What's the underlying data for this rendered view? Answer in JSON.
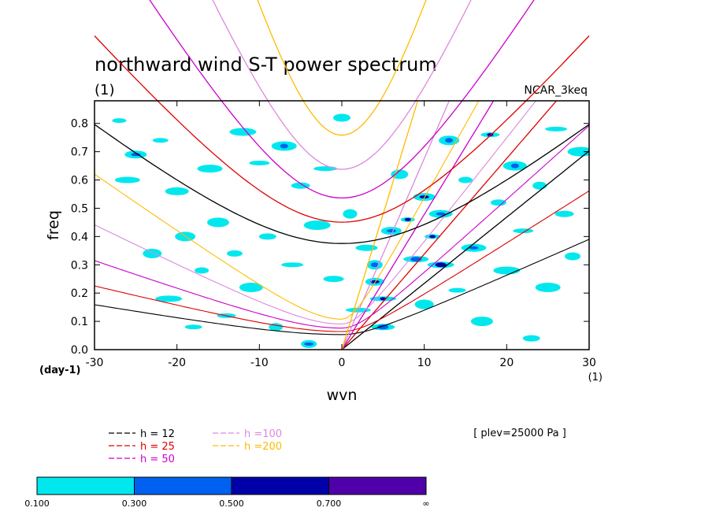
{
  "chart_data": {
    "type": "heatmap",
    "title": "northward wind S-T power spectrum",
    "subtitle_left": "(1)",
    "subtitle_right": "NCAR_3keq",
    "xlabel": "wvn",
    "ylabel": "freq",
    "x_unit": "(1)",
    "y_unit": "(day-1)",
    "xlim": [
      -30,
      30
    ],
    "ylim": [
      0,
      0.88
    ],
    "x_ticks": [
      -30,
      -20,
      -10,
      0,
      10,
      20,
      30
    ],
    "x_tick_labels": [
      "-30",
      "-20",
      "-10",
      "0",
      "10",
      "20",
      "30"
    ],
    "y_ticks": [
      0.0,
      0.1,
      0.2,
      0.3,
      0.4,
      0.5,
      0.6,
      0.7,
      0.8
    ],
    "y_tick_labels": [
      "0.0",
      "0.1",
      "0.2",
      "0.3",
      "0.4",
      "0.5",
      "0.6",
      "0.7",
      "0.8"
    ],
    "annotation": "[ plev=25000 Pa ]",
    "colorbar": {
      "levels": [
        "0.100",
        "0.300",
        "0.500",
        "0.700",
        "∞"
      ],
      "colors": [
        "#00e8ee",
        "#0060f0",
        "#0000a8",
        "#5000a8"
      ]
    },
    "dispersion_curves": [
      {
        "label": "h = 12",
        "color": "#000000",
        "h": 12
      },
      {
        "label": "h = 25",
        "color": "#dd0000",
        "h": 25
      },
      {
        "label": "h = 50",
        "color": "#cc00cc",
        "h": 50
      },
      {
        "label": "h =100",
        "color": "#dd88dd",
        "h": 100
      },
      {
        "label": "h =200",
        "color": "#ffbb00",
        "h": 200
      }
    ],
    "heat_blobs": [
      {
        "x": -27,
        "y": 0.81,
        "v": 0.15
      },
      {
        "x": -26,
        "y": 0.6,
        "v": 0.15
      },
      {
        "x": -25,
        "y": 0.69,
        "v": 0.32
      },
      {
        "x": -23,
        "y": 0.34,
        "v": 0.15
      },
      {
        "x": -22,
        "y": 0.74,
        "v": 0.15
      },
      {
        "x": -21,
        "y": 0.18,
        "v": 0.15
      },
      {
        "x": -20,
        "y": 0.56,
        "v": 0.15
      },
      {
        "x": -19,
        "y": 0.4,
        "v": 0.15
      },
      {
        "x": -18,
        "y": 0.08,
        "v": 0.15
      },
      {
        "x": -17,
        "y": 0.28,
        "v": 0.15
      },
      {
        "x": -16,
        "y": 0.64,
        "v": 0.15
      },
      {
        "x": -15,
        "y": 0.45,
        "v": 0.15
      },
      {
        "x": -14,
        "y": 0.12,
        "v": 0.15
      },
      {
        "x": -13,
        "y": 0.34,
        "v": 0.15
      },
      {
        "x": -12,
        "y": 0.77,
        "v": 0.15
      },
      {
        "x": -11,
        "y": 0.22,
        "v": 0.15
      },
      {
        "x": -10,
        "y": 0.66,
        "v": 0.15
      },
      {
        "x": -9,
        "y": 0.4,
        "v": 0.15
      },
      {
        "x": -8,
        "y": 0.08,
        "v": 0.15
      },
      {
        "x": -7,
        "y": 0.72,
        "v": 0.32
      },
      {
        "x": -6,
        "y": 0.3,
        "v": 0.15
      },
      {
        "x": -5,
        "y": 0.58,
        "v": 0.15
      },
      {
        "x": -4,
        "y": 0.02,
        "v": 0.32
      },
      {
        "x": -3,
        "y": 0.44,
        "v": 0.15
      },
      {
        "x": -2,
        "y": 0.64,
        "v": 0.15
      },
      {
        "x": -1,
        "y": 0.25,
        "v": 0.15
      },
      {
        "x": 0,
        "y": 0.82,
        "v": 0.15
      },
      {
        "x": 1,
        "y": 0.48,
        "v": 0.15
      },
      {
        "x": 2,
        "y": 0.14,
        "v": 0.15
      },
      {
        "x": 3,
        "y": 0.36,
        "v": 0.15
      },
      {
        "x": 4,
        "y": 0.24,
        "v": 0.52
      },
      {
        "x": 4,
        "y": 0.3,
        "v": 0.32
      },
      {
        "x": 5,
        "y": 0.18,
        "v": 0.52
      },
      {
        "x": 5,
        "y": 0.08,
        "v": 0.32
      },
      {
        "x": 6,
        "y": 0.42,
        "v": 0.32
      },
      {
        "x": 7,
        "y": 0.62,
        "v": 0.15
      },
      {
        "x": 8,
        "y": 0.46,
        "v": 0.52
      },
      {
        "x": 9,
        "y": 0.32,
        "v": 0.32
      },
      {
        "x": 10,
        "y": 0.54,
        "v": 0.52
      },
      {
        "x": 10,
        "y": 0.16,
        "v": 0.15
      },
      {
        "x": 11,
        "y": 0.4,
        "v": 0.52
      },
      {
        "x": 12,
        "y": 0.3,
        "v": 0.52
      },
      {
        "x": 12,
        "y": 0.48,
        "v": 0.32
      },
      {
        "x": 13,
        "y": 0.74,
        "v": 0.32
      },
      {
        "x": 14,
        "y": 0.21,
        "v": 0.15
      },
      {
        "x": 15,
        "y": 0.6,
        "v": 0.15
      },
      {
        "x": 16,
        "y": 0.36,
        "v": 0.32
      },
      {
        "x": 17,
        "y": 0.1,
        "v": 0.15
      },
      {
        "x": 18,
        "y": 0.76,
        "v": 0.52
      },
      {
        "x": 19,
        "y": 0.52,
        "v": 0.15
      },
      {
        "x": 20,
        "y": 0.28,
        "v": 0.15
      },
      {
        "x": 21,
        "y": 0.65,
        "v": 0.32
      },
      {
        "x": 22,
        "y": 0.42,
        "v": 0.15
      },
      {
        "x": 23,
        "y": 0.04,
        "v": 0.15
      },
      {
        "x": 24,
        "y": 0.58,
        "v": 0.15
      },
      {
        "x": 25,
        "y": 0.22,
        "v": 0.15
      },
      {
        "x": 26,
        "y": 0.78,
        "v": 0.15
      },
      {
        "x": 27,
        "y": 0.48,
        "v": 0.15
      },
      {
        "x": 28,
        "y": 0.33,
        "v": 0.15
      },
      {
        "x": 29,
        "y": 0.7,
        "v": 0.15
      }
    ]
  }
}
